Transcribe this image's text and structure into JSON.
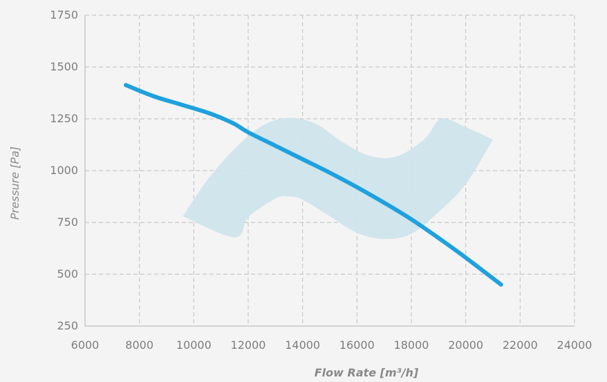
{
  "chart_data": {
    "type": "line",
    "title": "",
    "xlabel": "Flow Rate [m³/h]",
    "ylabel": "Pressure [Pa]",
    "xlim": [
      6000,
      24000
    ],
    "ylim": [
      250,
      1750
    ],
    "x_ticks": [
      6000,
      8000,
      10000,
      12000,
      14000,
      16000,
      18000,
      20000,
      22000,
      24000
    ],
    "y_ticks": [
      250,
      500,
      750,
      1000,
      1250,
      1500,
      1750
    ],
    "x_tick_labels": [
      "6000",
      "8000",
      "10000",
      "12000",
      "14000",
      "16000",
      "18000",
      "20000",
      "22000",
      "24000"
    ],
    "y_tick_labels": [
      "250",
      "500",
      "750",
      "1000",
      "1250",
      "1500",
      "1750"
    ],
    "grid": true,
    "grid_style": "dashed",
    "colors": {
      "background": "#f4f4f4",
      "grid": "#c8c8c8",
      "axis": "#bdbdbd",
      "line": "#1fa1de",
      "band": "#cfe4ec"
    },
    "series": [
      {
        "type": "line",
        "color": "#1fa1de",
        "x": [
          7500,
          8500,
          9500,
          10500,
          11000,
          11500,
          12000,
          13000,
          14000,
          15000,
          16000,
          17000,
          18000,
          19000,
          20000,
          21300
        ],
        "y": [
          1413,
          1360,
          1320,
          1280,
          1255,
          1225,
          1185,
          1120,
          1055,
          990,
          920,
          845,
          765,
          675,
          580,
          450
        ]
      }
    ],
    "band": {
      "type": "area",
      "color": "#cfe4ec",
      "upper_x": [
        9600,
        10500,
        11500,
        12500,
        13500,
        14500,
        15500,
        16500,
        17500,
        18500,
        19100,
        20000,
        21000
      ],
      "upper_y": [
        780,
        955,
        1105,
        1215,
        1255,
        1225,
        1135,
        1070,
        1070,
        1155,
        1250,
        1210,
        1150
      ],
      "lower_x": [
        21000,
        20000,
        19000,
        18000,
        17000,
        16000,
        15000,
        14000,
        13500,
        13000,
        12000,
        11500,
        9600
      ],
      "lower_y": [
        1150,
        935,
        800,
        695,
        670,
        700,
        780,
        860,
        875,
        865,
        775,
        678,
        780
      ]
    }
  }
}
